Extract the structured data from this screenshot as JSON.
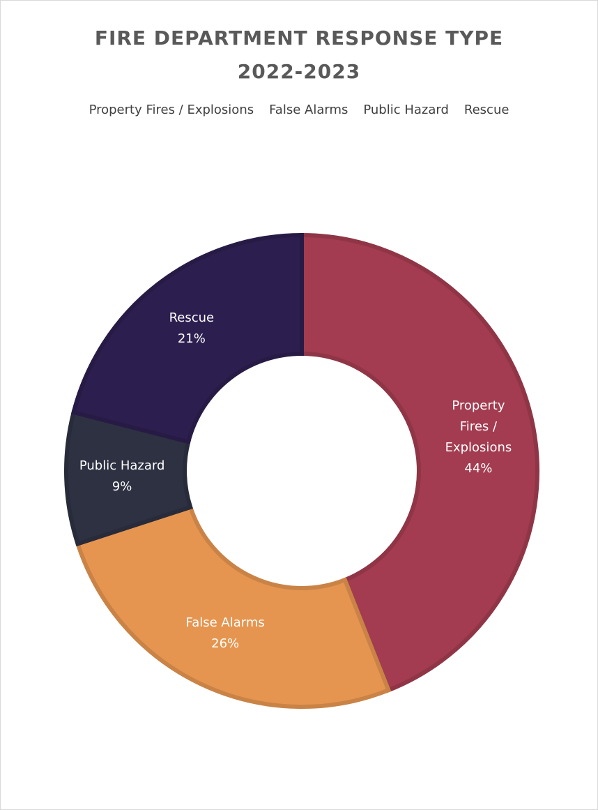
{
  "chart_data": {
    "type": "donut",
    "title": "FIRE DEPARTMENT RESPONSE TYPE 2022-2023",
    "categories": [
      "Property Fires / Explosions",
      "False Alarms",
      "Public Hazard",
      "Rescue"
    ],
    "values": [
      44,
      26,
      9,
      21
    ],
    "value_labels": [
      "44%",
      "26%",
      "9%",
      "21%"
    ],
    "colors": [
      "#a33c50",
      "#e59550",
      "#2d3142",
      "#2c1f4f"
    ],
    "legend": "top"
  }
}
